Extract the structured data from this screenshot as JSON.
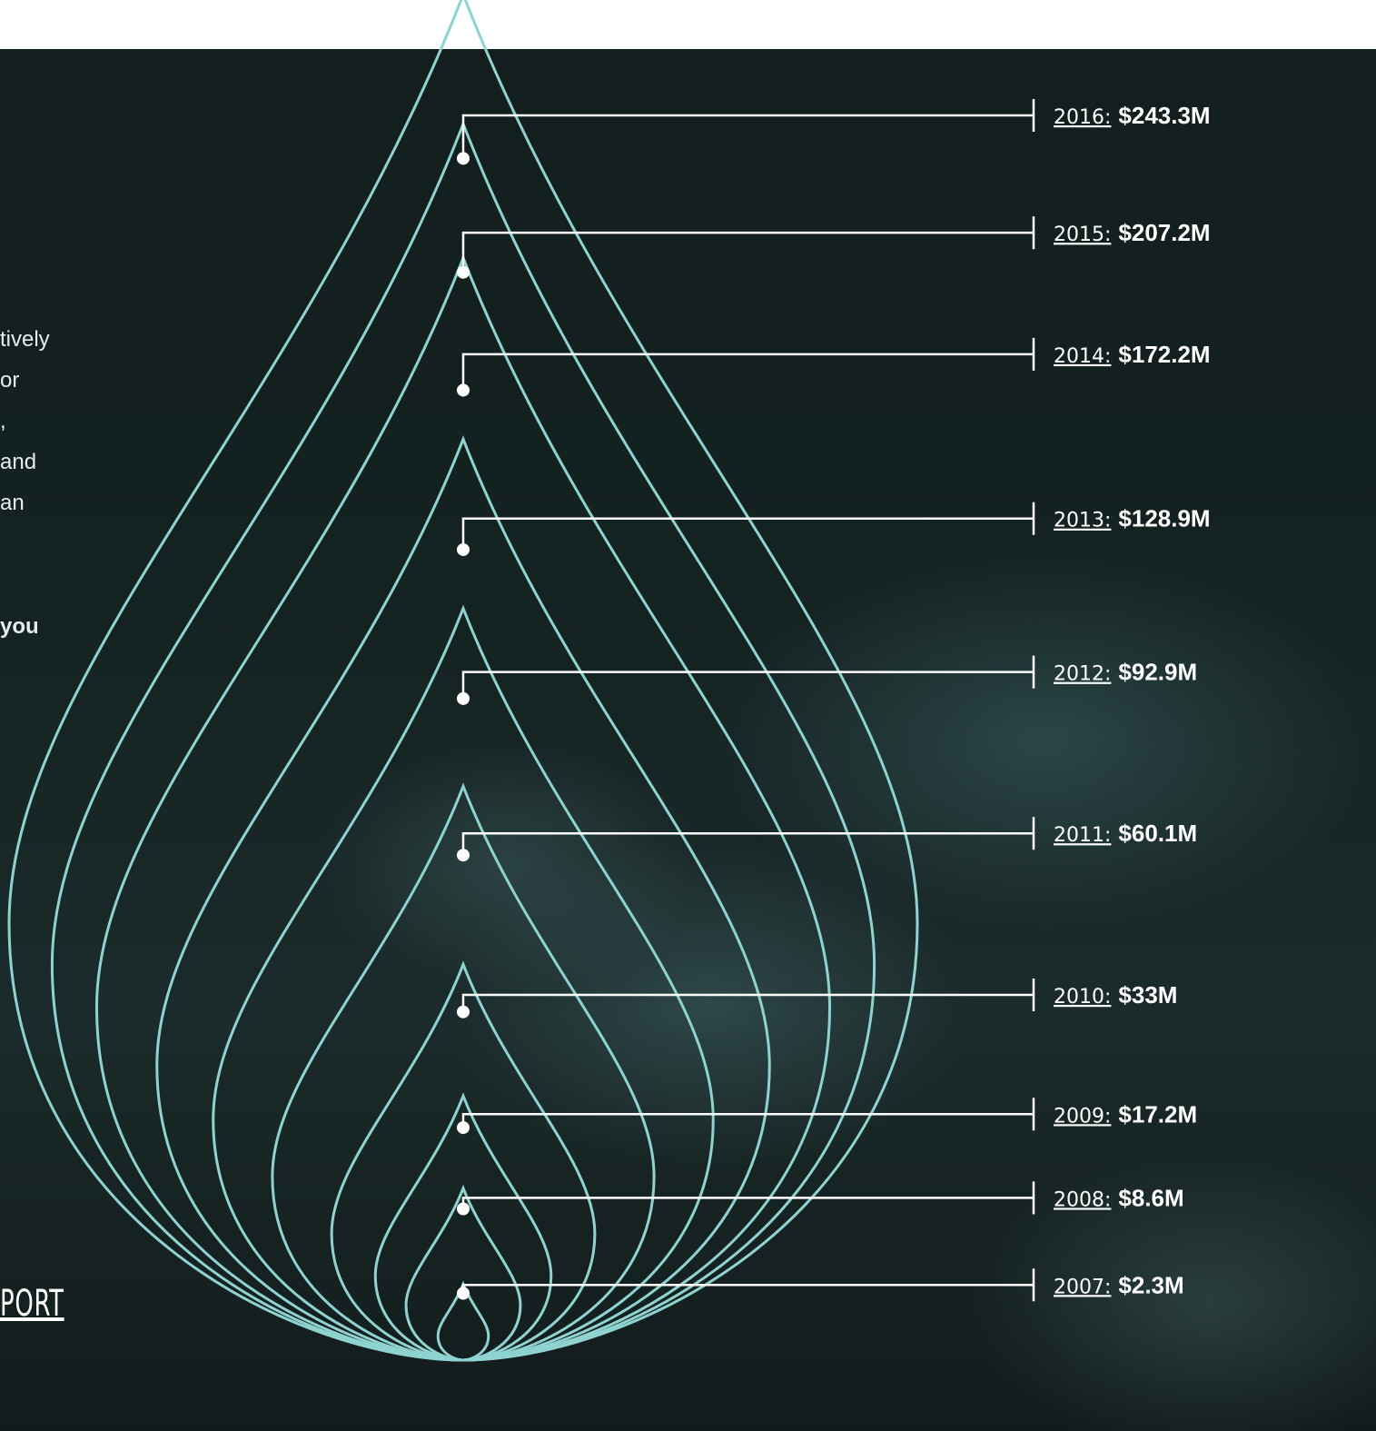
{
  "intro_fragments": [
    "tively",
    "or",
    ",",
    "and",
    "an"
  ],
  "intro_bold_fragment": "you",
  "cta_label": "PORT",
  "colors": {
    "drop_outline": "#8fd3d1",
    "leader_line": "#ffffff",
    "background": "#152222"
  },
  "chart_data": {
    "type": "nested-drop",
    "title": "",
    "series": [
      {
        "year": "2016",
        "year_label": "2016:",
        "amount_label": "$243.3M",
        "value": 243.3
      },
      {
        "year": "2015",
        "year_label": "2015:",
        "amount_label": "$207.2M",
        "value": 207.2
      },
      {
        "year": "2014",
        "year_label": "2014:",
        "amount_label": "$172.2M",
        "value": 172.2
      },
      {
        "year": "2013",
        "year_label": "2013:",
        "amount_label": "$128.9M",
        "value": 128.9
      },
      {
        "year": "2012",
        "year_label": "2012:",
        "amount_label": "$92.9M",
        "value": 92.9
      },
      {
        "year": "2011",
        "year_label": "2011:",
        "amount_label": "$60.1M",
        "value": 60.1
      },
      {
        "year": "2010",
        "year_label": "2010:",
        "amount_label": "$33M",
        "value": 33
      },
      {
        "year": "2009",
        "year_label": "2009:",
        "amount_label": "$17.2M",
        "value": 17.2
      },
      {
        "year": "2008",
        "year_label": "2008:",
        "amount_label": "$8.6M",
        "value": 8.6
      },
      {
        "year": "2007",
        "year_label": "2007:",
        "amount_label": "$2.3M",
        "value": 2.3
      }
    ]
  }
}
